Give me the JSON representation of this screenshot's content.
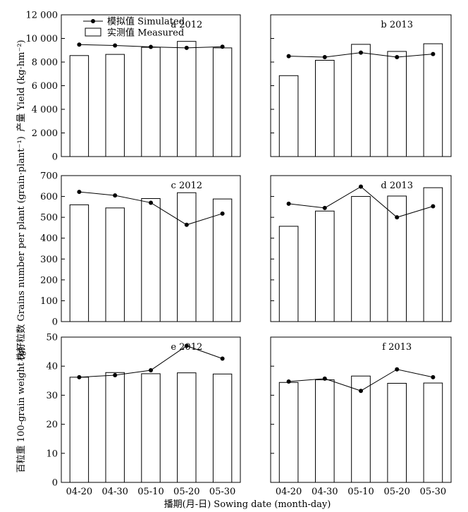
{
  "figure": {
    "xlabel": "播期(月-日) Sowing date (month-day)",
    "legend": {
      "simulated": "模拟值 Simulated",
      "measured": "实测值 Measured"
    }
  },
  "chart_data": [
    {
      "type": "bar",
      "panel": "a 2012",
      "row": 0,
      "col": 0,
      "ylabel": "产量 Yield (kg·hm⁻²)",
      "categories": [
        "04-20",
        "04-30",
        "05-10",
        "05-20",
        "05-30"
      ],
      "ylim": [
        0,
        12000
      ],
      "yticks": [
        0,
        2000,
        4000,
        6000,
        8000,
        10000,
        12000
      ],
      "ytick_labels": [
        "0",
        "2 000",
        "4 000",
        "6 000",
        "8 000",
        "10 000",
        "12 000"
      ],
      "series": [
        {
          "name": "实测值 Measured",
          "kind": "bar",
          "values": [
            8550,
            8650,
            9250,
            9750,
            9200
          ]
        },
        {
          "name": "模拟值 Simulated",
          "kind": "line",
          "values": [
            9480,
            9400,
            9280,
            9200,
            9300
          ]
        }
      ],
      "legend_position": "top-left"
    },
    {
      "type": "bar",
      "panel": "b 2013",
      "row": 0,
      "col": 1,
      "categories": [
        "04-20",
        "04-30",
        "05-10",
        "05-20",
        "05-30"
      ],
      "ylim": [
        0,
        12000
      ],
      "yticks": [
        0,
        2000,
        4000,
        6000,
        8000,
        10000,
        12000
      ],
      "series": [
        {
          "name": "实测值 Measured",
          "kind": "bar",
          "values": [
            6850,
            8150,
            9500,
            8900,
            9550
          ]
        },
        {
          "name": "模拟值 Simulated",
          "kind": "line",
          "values": [
            8500,
            8420,
            8800,
            8420,
            8680
          ]
        }
      ]
    },
    {
      "type": "bar",
      "panel": "c 2012",
      "row": 1,
      "col": 0,
      "ylabel": "株籽粒数 Grains number per plant (grain·plant⁻¹)",
      "categories": [
        "04-20",
        "04-30",
        "05-10",
        "05-20",
        "05-30"
      ],
      "ylim": [
        0,
        700
      ],
      "yticks": [
        0,
        100,
        200,
        300,
        400,
        500,
        600,
        700
      ],
      "ytick_labels": [
        "0",
        "100",
        "200",
        "300",
        "400",
        "500",
        "600",
        "700"
      ],
      "series": [
        {
          "name": "实测值 Measured",
          "kind": "bar",
          "values": [
            560,
            545,
            590,
            618,
            588
          ]
        },
        {
          "name": "模拟值 Simulated",
          "kind": "line",
          "values": [
            622,
            605,
            570,
            464,
            518
          ]
        }
      ]
    },
    {
      "type": "bar",
      "panel": "d 2013",
      "row": 1,
      "col": 1,
      "categories": [
        "04-20",
        "04-30",
        "05-10",
        "05-20",
        "05-30"
      ],
      "ylim": [
        0,
        700
      ],
      "yticks": [
        0,
        100,
        200,
        300,
        400,
        500,
        600,
        700
      ],
      "series": [
        {
          "name": "实测值 Measured",
          "kind": "bar",
          "values": [
            457,
            530,
            600,
            602,
            642
          ]
        },
        {
          "name": "模拟值 Simulated",
          "kind": "line",
          "values": [
            565,
            545,
            647,
            500,
            553
          ]
        }
      ]
    },
    {
      "type": "bar",
      "panel": "e 2012",
      "row": 2,
      "col": 0,
      "ylabel": "百粒重 100-grain weight (g)",
      "categories": [
        "04-20",
        "04-30",
        "05-10",
        "05-20",
        "05-30"
      ],
      "ylim": [
        0,
        50
      ],
      "yticks": [
        0,
        10,
        20,
        30,
        40,
        50
      ],
      "ytick_labels": [
        "0",
        "10",
        "20",
        "30",
        "40",
        "50"
      ],
      "series": [
        {
          "name": "实测值 Measured",
          "kind": "bar",
          "values": [
            36.2,
            37.8,
            37.4,
            37.7,
            37.3
          ]
        },
        {
          "name": "模拟值 Simulated",
          "kind": "line",
          "values": [
            36.2,
            36.9,
            38.6,
            47.0,
            42.6
          ]
        }
      ]
    },
    {
      "type": "bar",
      "panel": "f 2013",
      "row": 2,
      "col": 1,
      "categories": [
        "04-20",
        "04-30",
        "05-10",
        "05-20",
        "05-30"
      ],
      "ylim": [
        0,
        50
      ],
      "yticks": [
        0,
        10,
        20,
        30,
        40,
        50
      ],
      "series": [
        {
          "name": "实测值 Measured",
          "kind": "bar",
          "values": [
            34.4,
            35.3,
            36.6,
            34.1,
            34.2
          ]
        },
        {
          "name": "模拟值 Simulated",
          "kind": "line",
          "values": [
            34.7,
            35.7,
            31.5,
            38.9,
            36.2
          ]
        }
      ]
    }
  ]
}
